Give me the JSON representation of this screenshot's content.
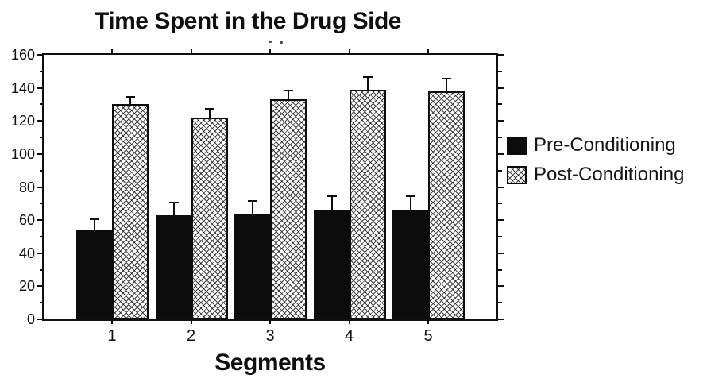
{
  "chart_data": {
    "type": "bar",
    "title": "Time Spent in the Drug Side",
    "xlabel": "Segments",
    "ylabel": "",
    "ylim": [
      0,
      160
    ],
    "yticks": [
      0,
      20,
      40,
      60,
      80,
      100,
      120,
      140,
      160
    ],
    "ytick_step": 20,
    "yminor_tick_step": 10,
    "grid": false,
    "legend_position": "right-outside",
    "error_bars": "upper-only",
    "categories": [
      "1",
      "2",
      "3",
      "4",
      "5"
    ],
    "series": [
      {
        "name": "Pre-Conditioning",
        "swatch": "solid-black",
        "values": [
          54,
          63,
          64,
          66,
          66
        ],
        "errors_plus": [
          6,
          7,
          7,
          8,
          8
        ]
      },
      {
        "name": "Post-Conditioning",
        "swatch": "diagonal-crosshatch",
        "values": [
          130,
          122,
          133,
          139,
          138
        ],
        "errors_plus": [
          4,
          5,
          5,
          7,
          7
        ]
      }
    ]
  },
  "colors": {
    "foreground": "#0f0f0f",
    "bar_fill": "#0c0c0c",
    "background": "#ffffff"
  }
}
